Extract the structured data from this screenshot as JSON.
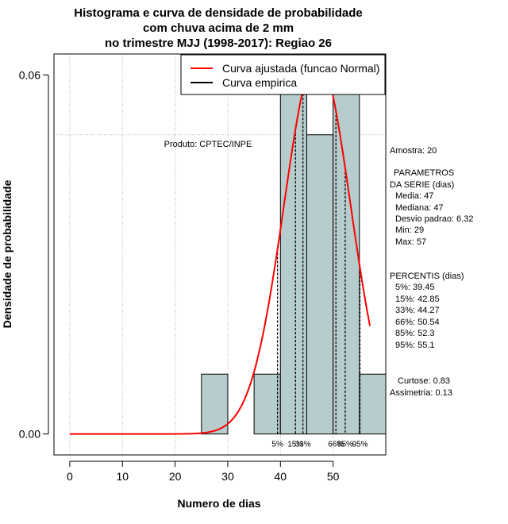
{
  "chart_data": {
    "type": "bar",
    "title_lines": [
      "Histograma e curva de densidade de probabilidade",
      "com chuva acima de 2 mm",
      "no trimestre MJJ (1998-2017): Regiao 26"
    ],
    "xlabel": "Numero de dias",
    "ylabel": "Densidade de probabilidade",
    "xlim": [
      -3,
      60
    ],
    "ylim": [
      -0.0035,
      0.0635
    ],
    "x_ticks": [
      0,
      10,
      20,
      30,
      40,
      50
    ],
    "x_tick_labels": [
      "0",
      "10",
      "20",
      "30",
      "40",
      "50"
    ],
    "y_ticks": [
      0.0,
      0.06
    ],
    "y_tick_labels": [
      "0.00",
      "0.06"
    ],
    "grid_x": [
      0,
      10,
      20,
      30,
      40,
      50
    ],
    "grid_y": [
      0.05,
      0.1
    ],
    "histogram": {
      "bin_edges": [
        25,
        30,
        35,
        40,
        45,
        50,
        55,
        60
      ],
      "densities": [
        0.01,
        0.0,
        0.01,
        0.06,
        0.05,
        0.06,
        0.01
      ]
    },
    "normal_fit": {
      "name": "Curva ajustada (funcao Normal)",
      "mean": 47,
      "sd": 6.32,
      "x_range": [
        0,
        57
      ],
      "color": "#ff0000"
    },
    "empirical": {
      "name": "Curva empirica",
      "color": "#000000"
    },
    "percentiles": [
      {
        "label": "5%",
        "value": 39.45
      },
      {
        "label": "15%",
        "value": 42.85
      },
      {
        "label": "33%",
        "value": 44.27
      },
      {
        "label": "66%",
        "value": 50.54
      },
      {
        "label": "85%",
        "value": 52.3
      },
      {
        "label": "95%",
        "value": 55.1
      }
    ],
    "legend_position": "top-right"
  },
  "annotations": {
    "produto": "Produto: CPTEC/INPE"
  },
  "stats_panel": {
    "amostra": "Amostra: 20",
    "parametros_title1": "PARAMETROS",
    "parametros_title2": "DA SERIE (dias)",
    "media": "Media: 47",
    "mediana": "Mediana: 47",
    "desvio": "Desvio padrao: 6.32",
    "min": "Min: 29",
    "max": "Max: 57",
    "percentis_title": "PERCENTIS (dias)",
    "p5": "5%: 39.45",
    "p15": "15%: 42.85",
    "p33": "33%: 44.27",
    "p66": "66%: 50.54",
    "p85": "85%: 52.3",
    "p95": "95%: 55.1",
    "curtose": "Curtose: 0.83",
    "assimetria": "Assimetria: 0.13"
  }
}
